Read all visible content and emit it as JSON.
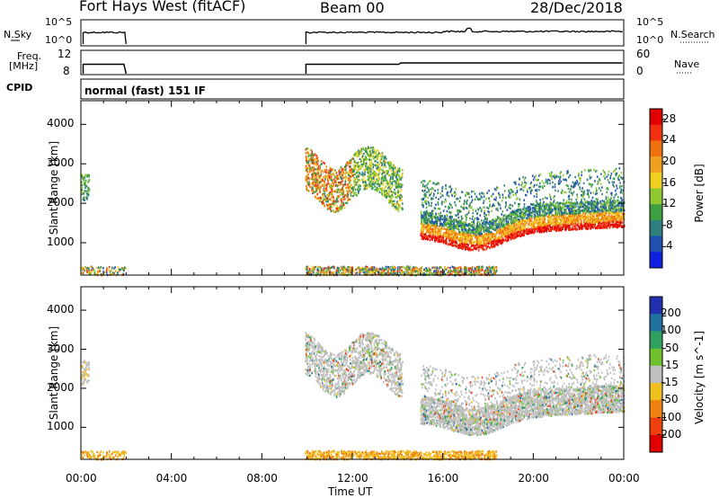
{
  "header": {
    "station": "Fort Hays West (fitACF)",
    "beam": "Beam 00",
    "date": "28/Dec/2018"
  },
  "mode": "normal (fast) 151 IF",
  "summary_panels": {
    "nsky_label": "N.Sky",
    "nsearch_label": "N.Search",
    "freq_label_line1": "Freq.",
    "freq_label_line2": "[MHz]",
    "nave_label": "Nave",
    "cpid_label": "CPID",
    "noise_ticks": [
      "10^5",
      "10^0"
    ],
    "noise_ticks_right": [
      "10^5",
      "10^0"
    ],
    "freq_ticks": [
      "12",
      "8"
    ],
    "nave_ticks": [
      "60",
      "0"
    ]
  },
  "chart_data": [
    {
      "type": "heatmap",
      "title": "",
      "xlabel": "Time UT",
      "ylabel": "Slant Range [km]",
      "xticks": [
        "00:00",
        "04:00",
        "08:00",
        "12:00",
        "16:00",
        "20:00",
        "00:00"
      ],
      "yticks": [
        1000,
        2000,
        3000,
        4000
      ],
      "ylim": [
        180,
        4600
      ],
      "xlim_hours": [
        0,
        24
      ],
      "colorbar": {
        "label": "Power [dB]",
        "ticks": [
          4,
          8,
          12,
          16,
          20,
          24,
          28
        ],
        "range": [
          0,
          30
        ],
        "colors": [
          "#1020e0",
          "#2050b0",
          "#2f7f7f",
          "#3ca040",
          "#90c830",
          "#f0d020",
          "#f0a020",
          "#f07010",
          "#f03010",
          "#e00000"
        ]
      },
      "echo_regions": [
        {
          "t_start": 0.0,
          "t_end": 0.35,
          "r_min": 2100,
          "r_max": 2750,
          "peak_db": 12
        },
        {
          "t_start": 9.9,
          "t_end": 14.2,
          "r_min": 1900,
          "r_max": 3400,
          "peak_db": 24
        },
        {
          "t_start": 15.0,
          "t_end": 24.0,
          "r_min": 800,
          "r_max": 2800,
          "peak_db": 28
        }
      ]
    },
    {
      "type": "heatmap",
      "title": "",
      "xlabel": "Time UT",
      "ylabel": "Slant Range [km]",
      "xticks": [
        "00:00",
        "04:00",
        "08:00",
        "12:00",
        "16:00",
        "20:00",
        "00:00"
      ],
      "yticks": [
        1000,
        2000,
        3000,
        4000
      ],
      "ylim": [
        180,
        4600
      ],
      "xlim_hours": [
        0,
        24
      ],
      "colorbar": {
        "label": "Velocity [m s^-1]",
        "tick_labels": [
          "200",
          "100",
          "50",
          "15",
          "-15",
          "-50",
          "-100",
          "-200"
        ],
        "colors": [
          "#2030b0",
          "#2070a0",
          "#30a060",
          "#70c030",
          "#c0c0c0",
          "#f0c020",
          "#f08010",
          "#f04010",
          "#e00000"
        ]
      },
      "echo_regions": [
        {
          "t_start": 0.0,
          "t_end": 0.35,
          "r_min": 2100,
          "r_max": 2750,
          "dominant_velocity": "-15 to 15"
        },
        {
          "t_start": 9.9,
          "t_end": 14.2,
          "r_min": 1900,
          "r_max": 3400,
          "dominant_velocity": "-15 to 15"
        },
        {
          "t_start": 15.0,
          "t_end": 24.0,
          "r_min": 800,
          "r_max": 2800,
          "dominant_velocity": "-15 to 15"
        }
      ]
    }
  ]
}
